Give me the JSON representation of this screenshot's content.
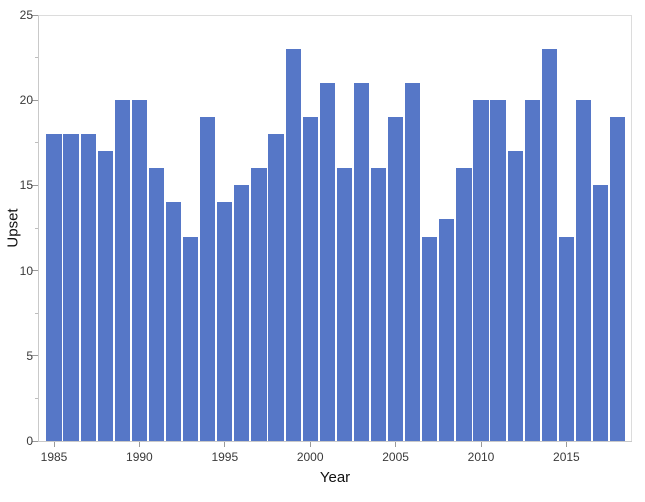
{
  "chart_data": {
    "type": "bar",
    "title": "",
    "xlabel": "Year",
    "ylabel": "Upset",
    "x": [
      1985,
      1986,
      1987,
      1988,
      1989,
      1990,
      1991,
      1992,
      1993,
      1994,
      1995,
      1996,
      1997,
      1998,
      1999,
      2000,
      2001,
      2002,
      2003,
      2004,
      2005,
      2006,
      2007,
      2008,
      2009,
      2010,
      2011,
      2012,
      2013,
      2014,
      2015,
      2016,
      2017,
      2018
    ],
    "values": [
      18,
      18,
      18,
      17,
      20,
      20,
      16,
      14,
      12,
      19,
      14,
      15,
      16,
      18,
      23,
      19,
      21,
      16,
      21,
      16,
      19,
      21,
      12,
      13,
      16,
      20,
      20,
      17,
      20,
      23,
      12,
      20,
      15,
      19
    ],
    "ylim": [
      0,
      25
    ],
    "yticks": [
      0,
      5,
      10,
      15,
      20,
      25
    ],
    "yticks_minor": [
      2.5,
      7.5,
      12.5,
      17.5,
      22.5
    ],
    "xticks": [
      1985,
      1990,
      1995,
      2000,
      2005,
      2010,
      2015
    ],
    "bar_color": "#5677c7",
    "grid": "off",
    "legend": "none"
  }
}
